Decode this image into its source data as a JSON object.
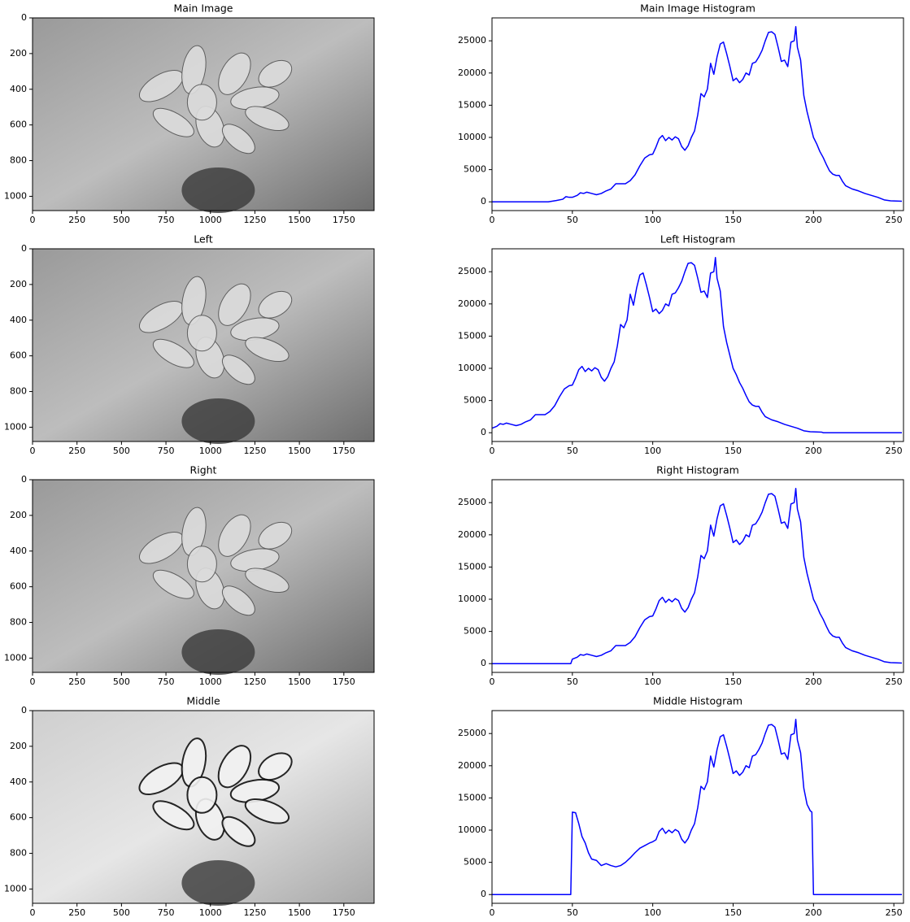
{
  "chart_data": [
    {
      "type": "image",
      "title": "Main Image",
      "xlim": [
        0,
        1920
      ],
      "ylim": [
        1080,
        0
      ],
      "xticks": [
        0,
        250,
        500,
        750,
        1000,
        1250,
        1500,
        1750
      ],
      "yticks": [
        0,
        200,
        400,
        600,
        800,
        1000
      ]
    },
    {
      "type": "line",
      "title": "Main Image Histogram",
      "color": "#0000ff",
      "xlim": [
        0,
        256
      ],
      "ylim": [
        -1360,
        28560
      ],
      "xticks": [
        0,
        50,
        100,
        150,
        200,
        250
      ],
      "yticks": [
        0,
        5000,
        10000,
        15000,
        20000,
        25000
      ],
      "x": [
        0,
        35,
        40,
        44,
        46,
        48,
        50,
        53,
        55,
        57,
        59,
        62,
        65,
        68,
        71,
        74,
        77,
        80,
        83,
        86,
        89,
        92,
        95,
        98,
        100,
        102,
        104,
        106,
        108,
        110,
        112,
        114,
        116,
        118,
        120,
        122,
        124,
        126,
        128,
        130,
        132,
        134,
        136,
        138,
        140,
        142,
        144,
        146,
        148,
        150,
        152,
        154,
        156,
        158,
        160,
        162,
        164,
        166,
        168,
        170,
        172,
        174,
        176,
        178,
        180,
        182,
        184,
        186,
        188,
        189,
        190,
        192,
        194,
        196,
        198,
        200,
        202,
        204,
        206,
        208,
        210,
        212,
        214,
        216,
        218,
        220,
        224,
        228,
        232,
        236,
        240,
        244,
        248,
        255
      ],
      "values": [
        0,
        0,
        200,
        400,
        800,
        700,
        700,
        1000,
        1400,
        1300,
        1500,
        1300,
        1100,
        1300,
        1700,
        2000,
        2800,
        2800,
        2800,
        3300,
        4200,
        5600,
        6800,
        7300,
        7400,
        8500,
        9800,
        10300,
        9500,
        10000,
        9600,
        10100,
        9800,
        8600,
        8000,
        8700,
        10000,
        11000,
        13500,
        16800,
        16300,
        17500,
        21500,
        19800,
        22500,
        24500,
        24800,
        23000,
        21000,
        18800,
        19200,
        18500,
        19000,
        20000,
        19700,
        21500,
        21700,
        22500,
        23500,
        25000,
        26300,
        26400,
        26000,
        24000,
        21800,
        22000,
        21000,
        24800,
        25000,
        27200,
        24000,
        22000,
        16500,
        14000,
        12000,
        10000,
        9000,
        7800,
        6900,
        5800,
        4800,
        4300,
        4100,
        4100,
        3200,
        2500,
        2000,
        1700,
        1300,
        1000,
        700,
        300,
        150,
        100
      ]
    },
    {
      "type": "image",
      "title": "Left",
      "xlim": [
        0,
        1920
      ],
      "ylim": [
        1080,
        0
      ],
      "xticks": [
        0,
        250,
        500,
        750,
        1000,
        1250,
        1500,
        1750
      ],
      "yticks": [
        0,
        200,
        400,
        600,
        800,
        1000
      ]
    },
    {
      "type": "line",
      "title": "Left Histogram",
      "color": "#0000ff",
      "xlim": [
        0,
        256
      ],
      "ylim": [
        -1360,
        28560
      ],
      "xticks": [
        0,
        50,
        100,
        150,
        200,
        250
      ],
      "yticks": [
        0,
        5000,
        10000,
        15000,
        20000,
        25000
      ],
      "x": [
        0,
        3,
        5,
        7,
        9,
        12,
        15,
        18,
        21,
        24,
        27,
        30,
        33,
        36,
        39,
        42,
        45,
        48,
        50,
        52,
        54,
        56,
        58,
        60,
        62,
        64,
        66,
        68,
        70,
        72,
        74,
        76,
        78,
        80,
        82,
        84,
        86,
        88,
        90,
        92,
        94,
        96,
        98,
        100,
        102,
        104,
        106,
        108,
        110,
        112,
        114,
        116,
        118,
        120,
        122,
        124,
        126,
        128,
        130,
        132,
        134,
        136,
        138,
        139,
        140,
        142,
        144,
        146,
        148,
        150,
        152,
        154,
        156,
        158,
        160,
        162,
        164,
        166,
        168,
        170,
        174,
        178,
        182,
        186,
        190,
        194,
        198,
        205,
        206,
        255
      ],
      "values": [
        700,
        1000,
        1400,
        1300,
        1500,
        1300,
        1100,
        1300,
        1700,
        2000,
        2800,
        2800,
        2800,
        3300,
        4200,
        5600,
        6800,
        7300,
        7400,
        8500,
        9800,
        10300,
        9500,
        10000,
        9600,
        10100,
        9800,
        8600,
        8000,
        8700,
        10000,
        11000,
        13500,
        16800,
        16300,
        17500,
        21500,
        19800,
        22500,
        24500,
        24800,
        23000,
        21000,
        18800,
        19200,
        18500,
        19000,
        20000,
        19700,
        21500,
        21700,
        22500,
        23500,
        25000,
        26300,
        26400,
        26000,
        24000,
        21800,
        22000,
        21000,
        24800,
        25000,
        27200,
        24000,
        22000,
        16500,
        14000,
        12000,
        10000,
        9000,
        7800,
        6900,
        5800,
        4800,
        4300,
        4100,
        4100,
        3200,
        2500,
        2000,
        1700,
        1300,
        1000,
        700,
        300,
        150,
        100,
        0,
        0
      ]
    },
    {
      "type": "image",
      "title": "Right",
      "xlim": [
        0,
        1920
      ],
      "ylim": [
        1080,
        0
      ],
      "xticks": [
        0,
        250,
        500,
        750,
        1000,
        1250,
        1500,
        1750
      ],
      "yticks": [
        0,
        200,
        400,
        600,
        800,
        1000
      ]
    },
    {
      "type": "line",
      "title": "Right Histogram",
      "color": "#0000ff",
      "xlim": [
        0,
        256
      ],
      "ylim": [
        -1360,
        28560
      ],
      "xticks": [
        0,
        50,
        100,
        150,
        200,
        250
      ],
      "yticks": [
        0,
        5000,
        10000,
        15000,
        20000,
        25000
      ],
      "x": [
        0,
        49,
        50,
        53,
        55,
        57,
        59,
        62,
        65,
        68,
        71,
        74,
        77,
        80,
        83,
        86,
        89,
        92,
        95,
        98,
        100,
        102,
        104,
        106,
        108,
        110,
        112,
        114,
        116,
        118,
        120,
        122,
        124,
        126,
        128,
        130,
        132,
        134,
        136,
        138,
        140,
        142,
        144,
        146,
        148,
        150,
        152,
        154,
        156,
        158,
        160,
        162,
        164,
        166,
        168,
        170,
        172,
        174,
        176,
        178,
        180,
        182,
        184,
        186,
        188,
        189,
        190,
        192,
        194,
        196,
        198,
        200,
        202,
        204,
        206,
        208,
        210,
        212,
        214,
        216,
        218,
        220,
        224,
        228,
        232,
        236,
        240,
        244,
        248,
        255
      ],
      "values": [
        0,
        0,
        700,
        1000,
        1400,
        1300,
        1500,
        1300,
        1100,
        1300,
        1700,
        2000,
        2800,
        2800,
        2800,
        3300,
        4200,
        5600,
        6800,
        7300,
        7400,
        8500,
        9800,
        10300,
        9500,
        10000,
        9600,
        10100,
        9800,
        8600,
        8000,
        8700,
        10000,
        11000,
        13500,
        16800,
        16300,
        17500,
        21500,
        19800,
        22500,
        24500,
        24800,
        23000,
        21000,
        18800,
        19200,
        18500,
        19000,
        20000,
        19700,
        21500,
        21700,
        22500,
        23500,
        25000,
        26300,
        26400,
        26000,
        24000,
        21800,
        22000,
        21000,
        24800,
        25000,
        27200,
        24000,
        22000,
        16500,
        14000,
        12000,
        10000,
        9000,
        7800,
        6900,
        5800,
        4800,
        4300,
        4100,
        4100,
        3200,
        2500,
        2000,
        1700,
        1300,
        1000,
        700,
        300,
        150,
        100
      ]
    },
    {
      "type": "image",
      "title": "Middle",
      "xlim": [
        0,
        1920
      ],
      "ylim": [
        1080,
        0
      ],
      "xticks": [
        0,
        250,
        500,
        750,
        1000,
        1250,
        1500,
        1750
      ],
      "yticks": [
        0,
        200,
        400,
        600,
        800,
        1000
      ]
    },
    {
      "type": "line",
      "title": "Middle Histogram",
      "color": "#0000ff",
      "xlim": [
        0,
        256
      ],
      "ylim": [
        -1360,
        28560
      ],
      "xticks": [
        0,
        50,
        100,
        150,
        200,
        250
      ],
      "yticks": [
        0,
        5000,
        10000,
        15000,
        20000,
        25000
      ],
      "x": [
        0,
        49,
        50,
        52,
        54,
        56,
        58,
        60,
        62,
        65,
        68,
        71,
        74,
        77,
        80,
        83,
        86,
        89,
        92,
        95,
        98,
        100,
        102,
        104,
        106,
        108,
        110,
        112,
        114,
        116,
        118,
        120,
        122,
        124,
        126,
        128,
        130,
        132,
        134,
        136,
        138,
        140,
        142,
        144,
        146,
        148,
        150,
        152,
        154,
        156,
        158,
        160,
        162,
        164,
        166,
        168,
        170,
        172,
        174,
        176,
        178,
        180,
        182,
        184,
        186,
        188,
        189,
        190,
        192,
        194,
        196,
        198,
        199,
        200,
        255
      ],
      "values": [
        0,
        0,
        12800,
        12700,
        11000,
        9000,
        8000,
        6500,
        5500,
        5300,
        4500,
        4800,
        4500,
        4300,
        4500,
        5000,
        5700,
        6500,
        7200,
        7600,
        8000,
        8200,
        8500,
        9800,
        10300,
        9500,
        10000,
        9600,
        10100,
        9800,
        8600,
        8000,
        8700,
        10000,
        11000,
        13500,
        16800,
        16300,
        17500,
        21500,
        19800,
        22500,
        24500,
        24800,
        23000,
        21000,
        18800,
        19200,
        18500,
        19000,
        20000,
        19700,
        21500,
        21700,
        22500,
        23500,
        25000,
        26300,
        26400,
        26000,
        24000,
        21800,
        22000,
        21000,
        24800,
        25000,
        27200,
        24000,
        22000,
        16500,
        14000,
        13000,
        12800,
        0,
        0
      ]
    }
  ]
}
